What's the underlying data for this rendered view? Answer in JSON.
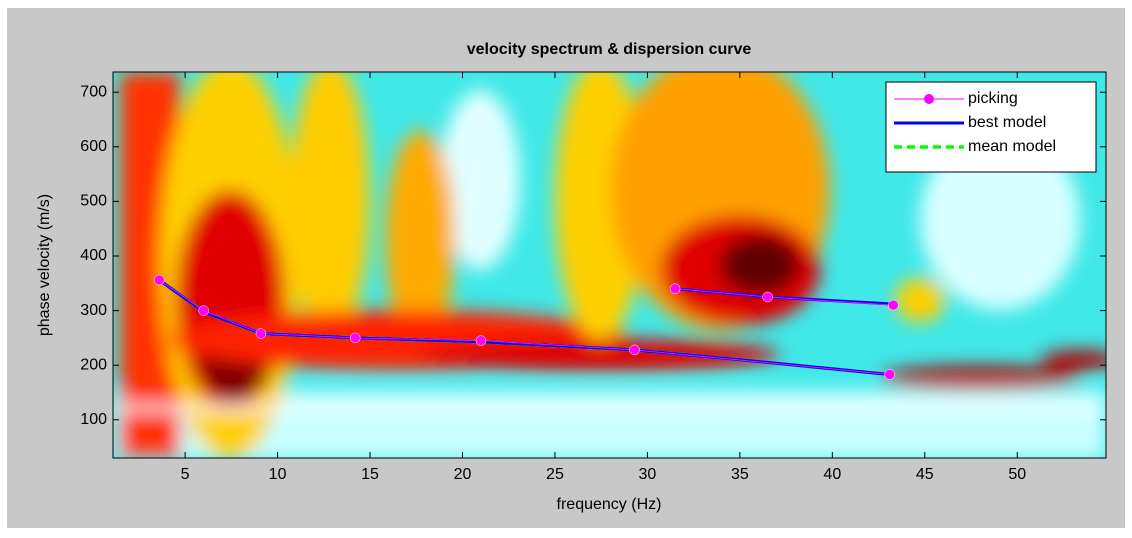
{
  "chart_data": {
    "type": "line",
    "title": "velocity spectrum & dispersion curve",
    "x_label": "frequency (Hz)",
    "y_label": "phase velocity (m/s)",
    "xlim": [
      1.1,
      54.8
    ],
    "ylim": [
      30,
      737
    ],
    "xticks": [
      5,
      10,
      15,
      20,
      25,
      30,
      35,
      40,
      45,
      50
    ],
    "yticks": [
      100,
      200,
      300,
      400,
      500,
      600,
      700
    ],
    "legend": "upper right",
    "series": [
      {
        "name": "picking",
        "color": "#ff00ff",
        "marker": true,
        "dash": false,
        "x": [
          3.6,
          6.0,
          9.1,
          14.2,
          21.0,
          29.3,
          43.1,
          null,
          31.5,
          36.5,
          43.3
        ],
        "values": [
          356,
          300,
          258,
          250,
          245,
          228,
          183,
          null,
          340,
          325,
          310
        ]
      },
      {
        "name": "best model",
        "color": "#0000ff",
        "marker": false,
        "dash": false,
        "x": [
          3.6,
          6.0,
          9.1,
          14.2,
          21.0,
          29.3,
          35.0,
          43.1,
          null,
          31.5,
          36.5,
          43.3
        ],
        "values": [
          356,
          298,
          258,
          250,
          243,
          228,
          210,
          183,
          null,
          340,
          325,
          312
        ]
      },
      {
        "name": "mean model",
        "color": "#00ff00",
        "marker": false,
        "dash": true,
        "x": [
          3.6,
          6.0,
          9.1,
          14.2,
          21.0,
          29.3,
          35.0,
          43.1
        ],
        "values": [
          356,
          298,
          258,
          250,
          243,
          228,
          210,
          183
        ]
      }
    ]
  }
}
